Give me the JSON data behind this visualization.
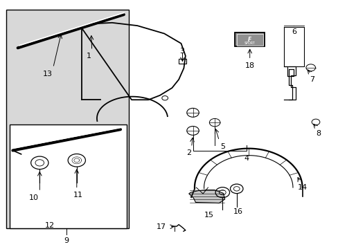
{
  "bg_color": "#ffffff",
  "fig_width": 4.89,
  "fig_height": 3.6,
  "dpi": 100,
  "outer_box_fill": "#d8d8d8",
  "inner_box_fill": "#ffffff",
  "line_color": "#000000",
  "text_color": "#000000",
  "font_size": 8,
  "badge_fill": "#909090",
  "shield_fill": "#c8c8c8"
}
